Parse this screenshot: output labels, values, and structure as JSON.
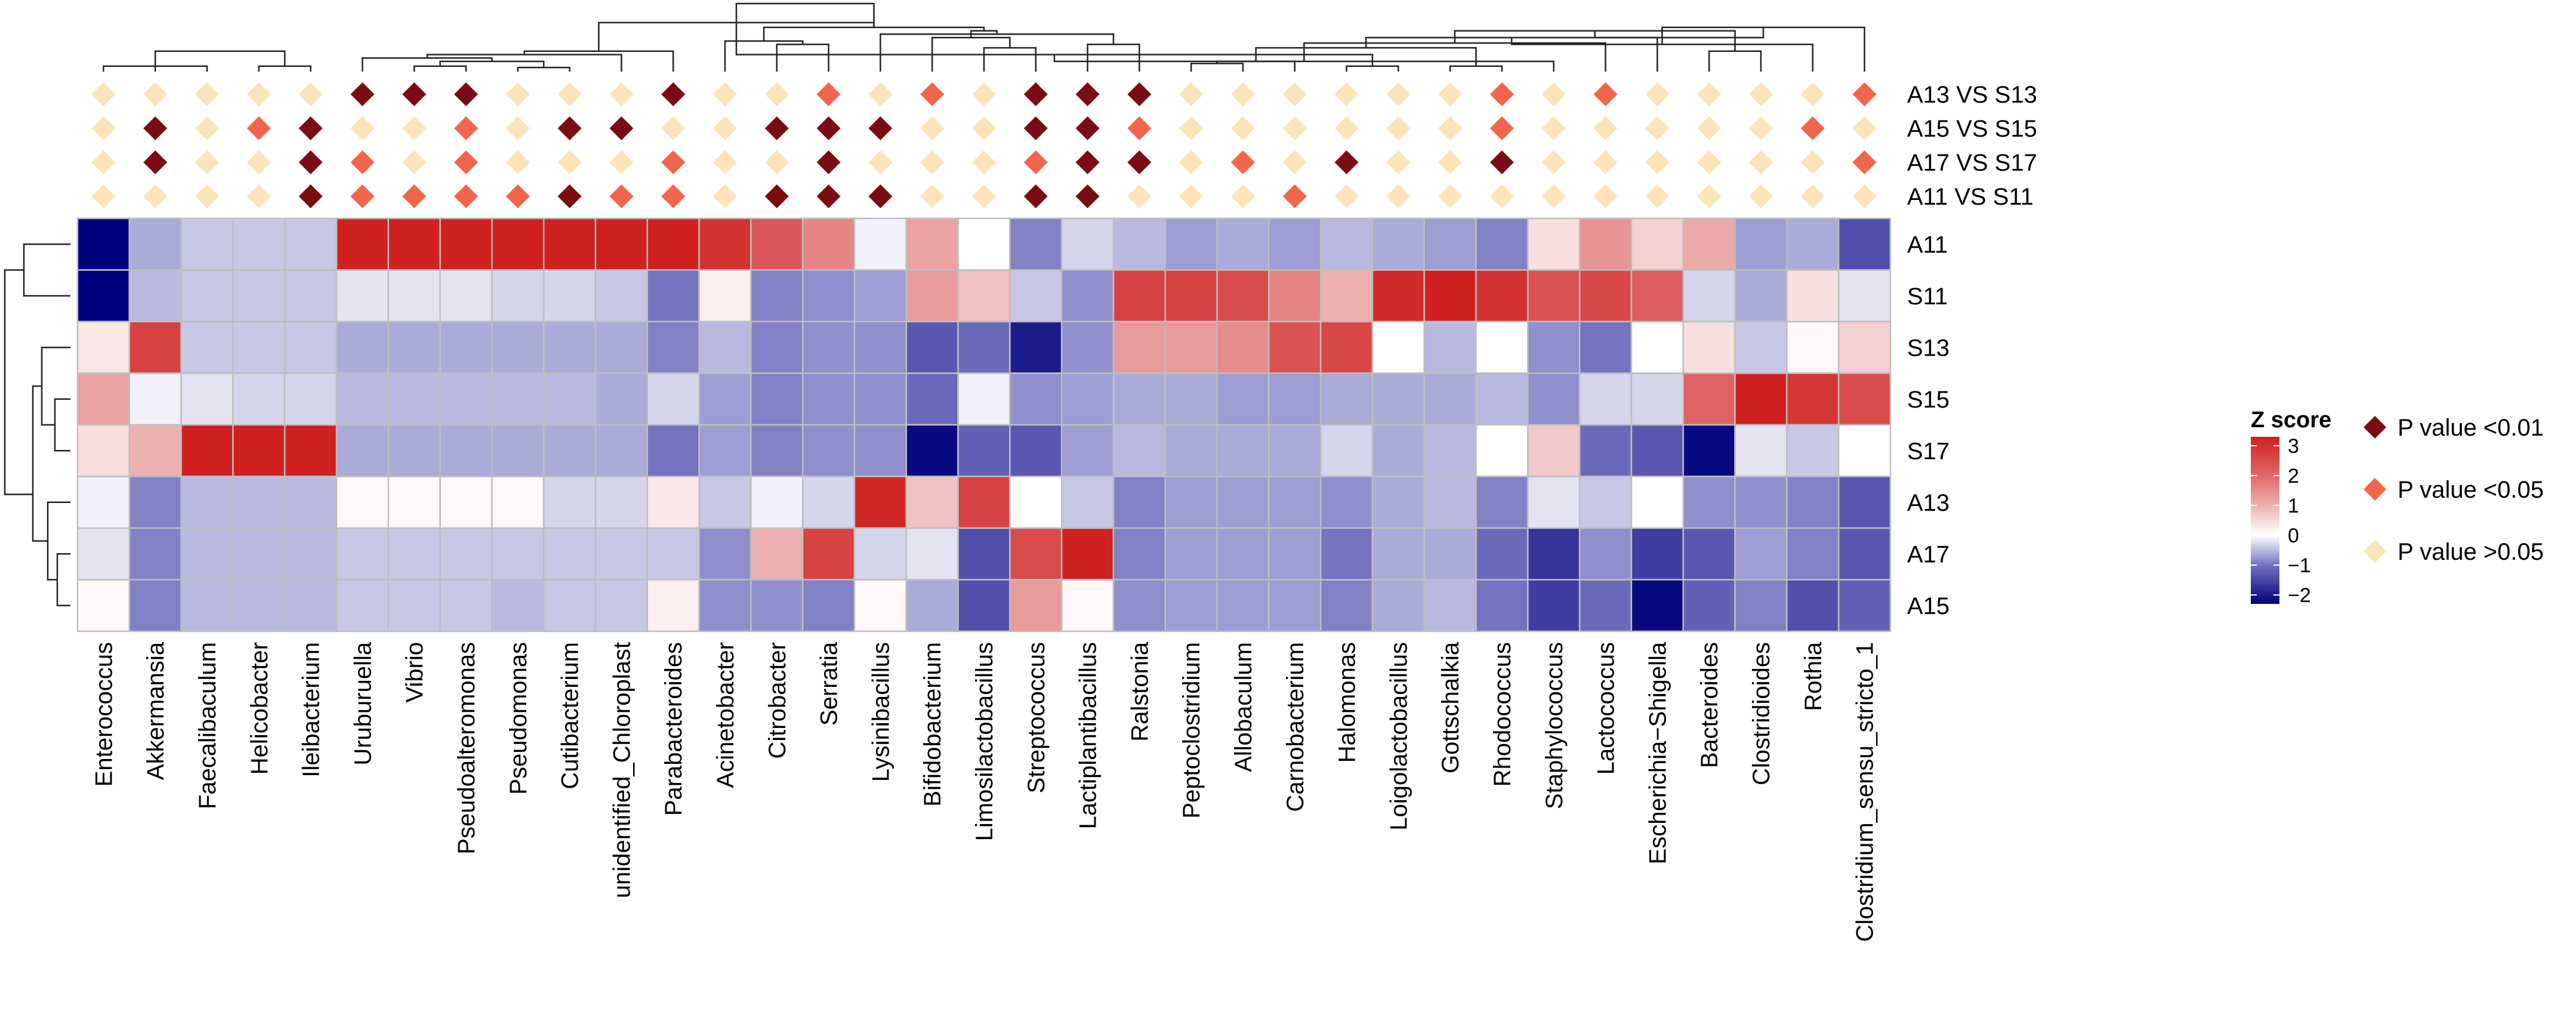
{
  "chart_data": {
    "type": "heatmap",
    "title": "",
    "columns": [
      "Enterococcus",
      "Akkermansia",
      "Faecalibaculum",
      "Helicobacter",
      "Ileibacterium",
      "Uruburuella",
      "Vibrio",
      "Pseudoalteromonas",
      "Pseudomonas",
      "Cutibacterium",
      "unidentified_Chloroplast",
      "Parabacteroides",
      "Acinetobacter",
      "Citrobacter",
      "Serratia",
      "Lysinibacillus",
      "Bifidobacterium",
      "Limosilactobacillus",
      "Streptococcus",
      "Lactiplantibacillus",
      "Ralstonia",
      "Peptoclostridium",
      "Allobaculum",
      "Carnobacterium",
      "Halomonas",
      "Loigolactobacillus",
      "Gottschalkia",
      "Rhodococcus",
      "Staphylococcus",
      "Lactococcus",
      "Escherichia−Shigella",
      "Bacteroides",
      "Clostridioides",
      "Rothia",
      "Clostridium_sensu_stricto_1"
    ],
    "rows": [
      "A11",
      "S11",
      "S13",
      "S15",
      "S17",
      "A13",
      "A17",
      "A15"
    ],
    "zscore": [
      [
        -2.3,
        -0.6,
        -0.4,
        -0.4,
        -0.4,
        3.3,
        3.3,
        3.3,
        3.3,
        3.3,
        3.3,
        3.3,
        3.0,
        2.3,
        1.6,
        -0.1,
        1.2,
        0.0,
        -0.9,
        -0.3,
        -0.5,
        -0.7,
        -0.6,
        -0.7,
        -0.5,
        -0.6,
        -0.7,
        -0.9,
        0.4,
        1.4,
        0.6,
        1.1,
        -0.7,
        -0.6,
        -1.4
      ],
      [
        -2.4,
        -0.5,
        -0.4,
        -0.4,
        -0.4,
        -0.2,
        -0.2,
        -0.2,
        -0.3,
        -0.3,
        -0.4,
        -1.0,
        0.2,
        -0.9,
        -0.8,
        -0.7,
        1.3,
        0.8,
        -0.4,
        -0.8,
        2.7,
        2.7,
        2.5,
        1.6,
        1.0,
        3.1,
        3.3,
        3.0,
        2.4,
        2.6,
        2.2,
        -0.3,
        -0.6,
        0.4,
        -0.2
      ],
      [
        0.3,
        2.7,
        -0.4,
        -0.4,
        -0.4,
        -0.6,
        -0.6,
        -0.6,
        -0.6,
        -0.6,
        -0.6,
        -0.9,
        -0.5,
        -0.9,
        -0.8,
        -0.8,
        -1.3,
        -1.1,
        -2.0,
        -0.8,
        1.3,
        1.3,
        1.5,
        2.4,
        2.6,
        0.0,
        -0.5,
        0.0,
        -0.8,
        -1.0,
        0.0,
        0.4,
        -0.4,
        0.1,
        0.6
      ],
      [
        1.2,
        -0.1,
        -0.2,
        -0.3,
        -0.3,
        -0.5,
        -0.5,
        -0.5,
        -0.5,
        -0.5,
        -0.6,
        -0.3,
        -0.7,
        -0.9,
        -0.8,
        -0.8,
        -1.1,
        -0.1,
        -0.8,
        -0.7,
        -0.6,
        -0.6,
        -0.7,
        -0.7,
        -0.6,
        -0.6,
        -0.6,
        -0.5,
        -0.8,
        -0.3,
        -0.3,
        2.1,
        3.4,
        2.9,
        2.5
      ],
      [
        0.4,
        1.0,
        3.3,
        3.3,
        3.3,
        -0.6,
        -0.6,
        -0.6,
        -0.6,
        -0.6,
        -0.6,
        -1.0,
        -0.7,
        -0.9,
        -0.8,
        -0.8,
        -2.2,
        -1.2,
        -1.3,
        -0.7,
        -0.5,
        -0.6,
        -0.6,
        -0.6,
        -0.3,
        -0.6,
        -0.5,
        0.0,
        0.7,
        -1.1,
        -1.3,
        -2.2,
        -0.2,
        -0.4,
        0.0
      ],
      [
        -0.1,
        -0.9,
        -0.5,
        -0.5,
        -0.5,
        0.1,
        0.1,
        0.1,
        0.1,
        -0.3,
        -0.3,
        0.3,
        -0.4,
        -0.1,
        -0.3,
        3.2,
        0.8,
        2.7,
        0.0,
        -0.4,
        -0.9,
        -0.7,
        -0.7,
        -0.7,
        -0.8,
        -0.6,
        -0.5,
        -0.9,
        -0.2,
        -0.4,
        0.0,
        -0.8,
        -0.8,
        -0.9,
        -1.3
      ],
      [
        -0.2,
        -0.9,
        -0.5,
        -0.5,
        -0.5,
        -0.4,
        -0.4,
        -0.4,
        -0.4,
        -0.4,
        -0.4,
        -0.4,
        -0.8,
        1.0,
        2.7,
        -0.3,
        -0.2,
        -1.4,
        2.5,
        3.5,
        -0.9,
        -0.7,
        -0.7,
        -0.7,
        -1.0,
        -0.6,
        -0.6,
        -1.1,
        -1.7,
        -0.8,
        -1.6,
        -1.3,
        -0.7,
        -0.9,
        -1.3
      ],
      [
        0.1,
        -0.9,
        -0.5,
        -0.5,
        -0.5,
        -0.4,
        -0.4,
        -0.4,
        -0.5,
        -0.4,
        -0.4,
        0.2,
        -0.8,
        -0.8,
        -0.9,
        0.1,
        -0.6,
        -1.4,
        1.3,
        0.1,
        -0.8,
        -0.7,
        -0.7,
        -0.7,
        -0.9,
        -0.6,
        -0.5,
        -1.0,
        -1.6,
        -1.1,
        -2.2,
        -1.2,
        -0.9,
        -1.4,
        -1.2
      ]
    ],
    "comparisons": [
      "A13 VS S13",
      "A15 VS S15",
      "A17 VS S17",
      "A11 VS S11"
    ],
    "significance": [
      [
        2,
        2,
        2,
        2,
        2,
        0,
        0,
        0,
        2,
        2,
        2,
        0,
        2,
        2,
        1,
        2,
        1,
        2,
        0,
        0,
        0,
        2,
        2,
        2,
        2,
        2,
        2,
        1,
        2,
        1,
        2,
        2,
        2,
        2,
        1
      ],
      [
        2,
        0,
        2,
        1,
        0,
        2,
        2,
        1,
        2,
        0,
        0,
        2,
        2,
        0,
        0,
        0,
        2,
        2,
        0,
        0,
        1,
        2,
        2,
        2,
        2,
        2,
        2,
        1,
        2,
        2,
        2,
        2,
        2,
        1,
        2
      ],
      [
        2,
        0,
        2,
        2,
        0,
        1,
        2,
        1,
        2,
        2,
        2,
        1,
        2,
        2,
        0,
        2,
        2,
        2,
        1,
        0,
        0,
        2,
        1,
        2,
        0,
        2,
        2,
        0,
        2,
        2,
        2,
        2,
        2,
        2,
        1
      ],
      [
        2,
        2,
        2,
        2,
        0,
        1,
        1,
        1,
        1,
        0,
        1,
        1,
        2,
        0,
        0,
        0,
        2,
        2,
        0,
        0,
        2,
        2,
        2,
        1,
        2,
        2,
        2,
        2,
        2,
        2,
        2,
        2,
        2,
        2,
        2
      ]
    ],
    "significance_colors": [
      "#7B0D12",
      "#F2654D",
      "#FCE3B8"
    ],
    "color_scale": {
      "stops": [
        -2.3,
        -1.0,
        0.0,
        1.0,
        2.0,
        3.3
      ],
      "colors": [
        "#00007C",
        "#7373C0",
        "#FFFFFF",
        "#EDB0B0",
        "#E06868",
        "#D02020"
      ]
    },
    "legend": {
      "title": "Z score",
      "ticks": [
        3,
        2,
        1,
        0,
        -1,
        -2
      ],
      "tick_labels": [
        "3",
        "2",
        "1",
        "0",
        "−1",
        "−2"
      ],
      "entries": [
        "P value <0.01",
        "P value <0.05",
        "P value >0.05"
      ]
    },
    "column_dendrogram": [
      [
        0,
        2,
        0.08
      ],
      [
        3,
        4,
        0.08
      ],
      [
        35,
        1,
        0.22
      ],
      [
        37,
        36,
        0.3
      ],
      [
        8,
        9,
        0.06
      ],
      [
        6,
        7,
        0.08
      ],
      [
        39,
        40,
        0.15
      ],
      [
        5,
        41,
        0.2
      ],
      [
        42,
        10,
        0.25
      ],
      [
        43,
        11,
        0.3
      ],
      [
        13,
        14,
        0.4
      ],
      [
        45,
        12,
        0.45
      ],
      [
        17,
        18,
        0.35
      ],
      [
        47,
        16,
        0.5
      ],
      [
        19,
        20,
        0.4
      ],
      [
        49,
        15,
        0.55
      ],
      [
        48,
        50,
        0.6
      ],
      [
        46,
        51,
        0.65
      ],
      [
        44,
        52,
        0.72
      ],
      [
        21,
        22,
        0.12
      ],
      [
        24,
        25,
        0.08
      ],
      [
        54,
        23,
        0.15
      ],
      [
        53,
        55,
        0.25
      ],
      [
        26,
        27,
        0.08
      ],
      [
        57,
        28,
        0.15
      ],
      [
        56,
        58,
        0.35
      ],
      [
        59,
        29,
        0.42
      ],
      [
        60,
        30,
        0.5
      ],
      [
        31,
        32,
        0.3
      ],
      [
        62,
        33,
        0.4
      ],
      [
        61,
        63,
        0.6
      ],
      [
        64,
        34,
        0.65
      ],
      [
        65,
        66,
        0.5
      ],
      [
        67,
        65,
        0
      ]
    ],
    "row_dendrogram": [],
    "xlabel": "",
    "ylabel": ""
  }
}
